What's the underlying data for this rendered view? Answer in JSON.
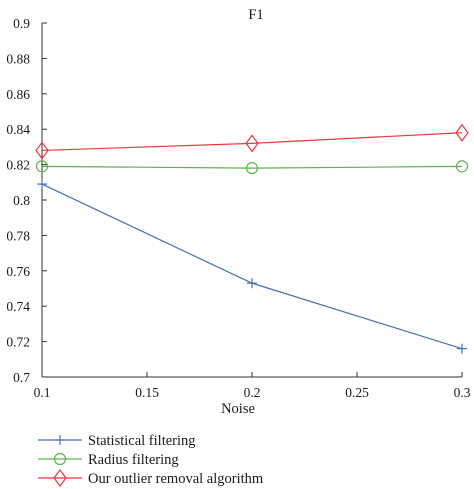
{
  "chart_data": {
    "type": "line",
    "title": "F1",
    "xlabel": "Noise",
    "ylabel": "",
    "x": [
      0.1,
      0.2,
      0.3
    ],
    "xlim": [
      0.1,
      0.3
    ],
    "ylim": [
      0.7,
      0.9
    ],
    "xticks": [
      0.1,
      0.15,
      0.2,
      0.25,
      0.3
    ],
    "xtick_labels": [
      "0.1",
      "0.15",
      "0.2",
      "0.25",
      "0.3"
    ],
    "yticks": [
      0.7,
      0.72,
      0.74,
      0.76,
      0.78,
      0.8,
      0.82,
      0.84,
      0.86,
      0.88,
      0.9
    ],
    "ytick_labels": [
      "0.7",
      "0.72",
      "0.74",
      "0.76",
      "0.78",
      "0.8",
      "0.82",
      "0.84",
      "0.86",
      "0.88",
      "0.9"
    ],
    "grid": false,
    "legend_position": "below",
    "series": [
      {
        "name": "Statistical filtering",
        "values": [
          0.809,
          0.753,
          0.716
        ],
        "color": "#4a6fb5",
        "marker": "plus"
      },
      {
        "name": "Radius filtering",
        "values": [
          0.819,
          0.818,
          0.819
        ],
        "color": "#5ab54a",
        "marker": "circle"
      },
      {
        "name": "Our outlier removal algorithm",
        "values": [
          0.828,
          0.832,
          0.838
        ],
        "color": "#e8383d",
        "marker": "diamond"
      }
    ]
  }
}
